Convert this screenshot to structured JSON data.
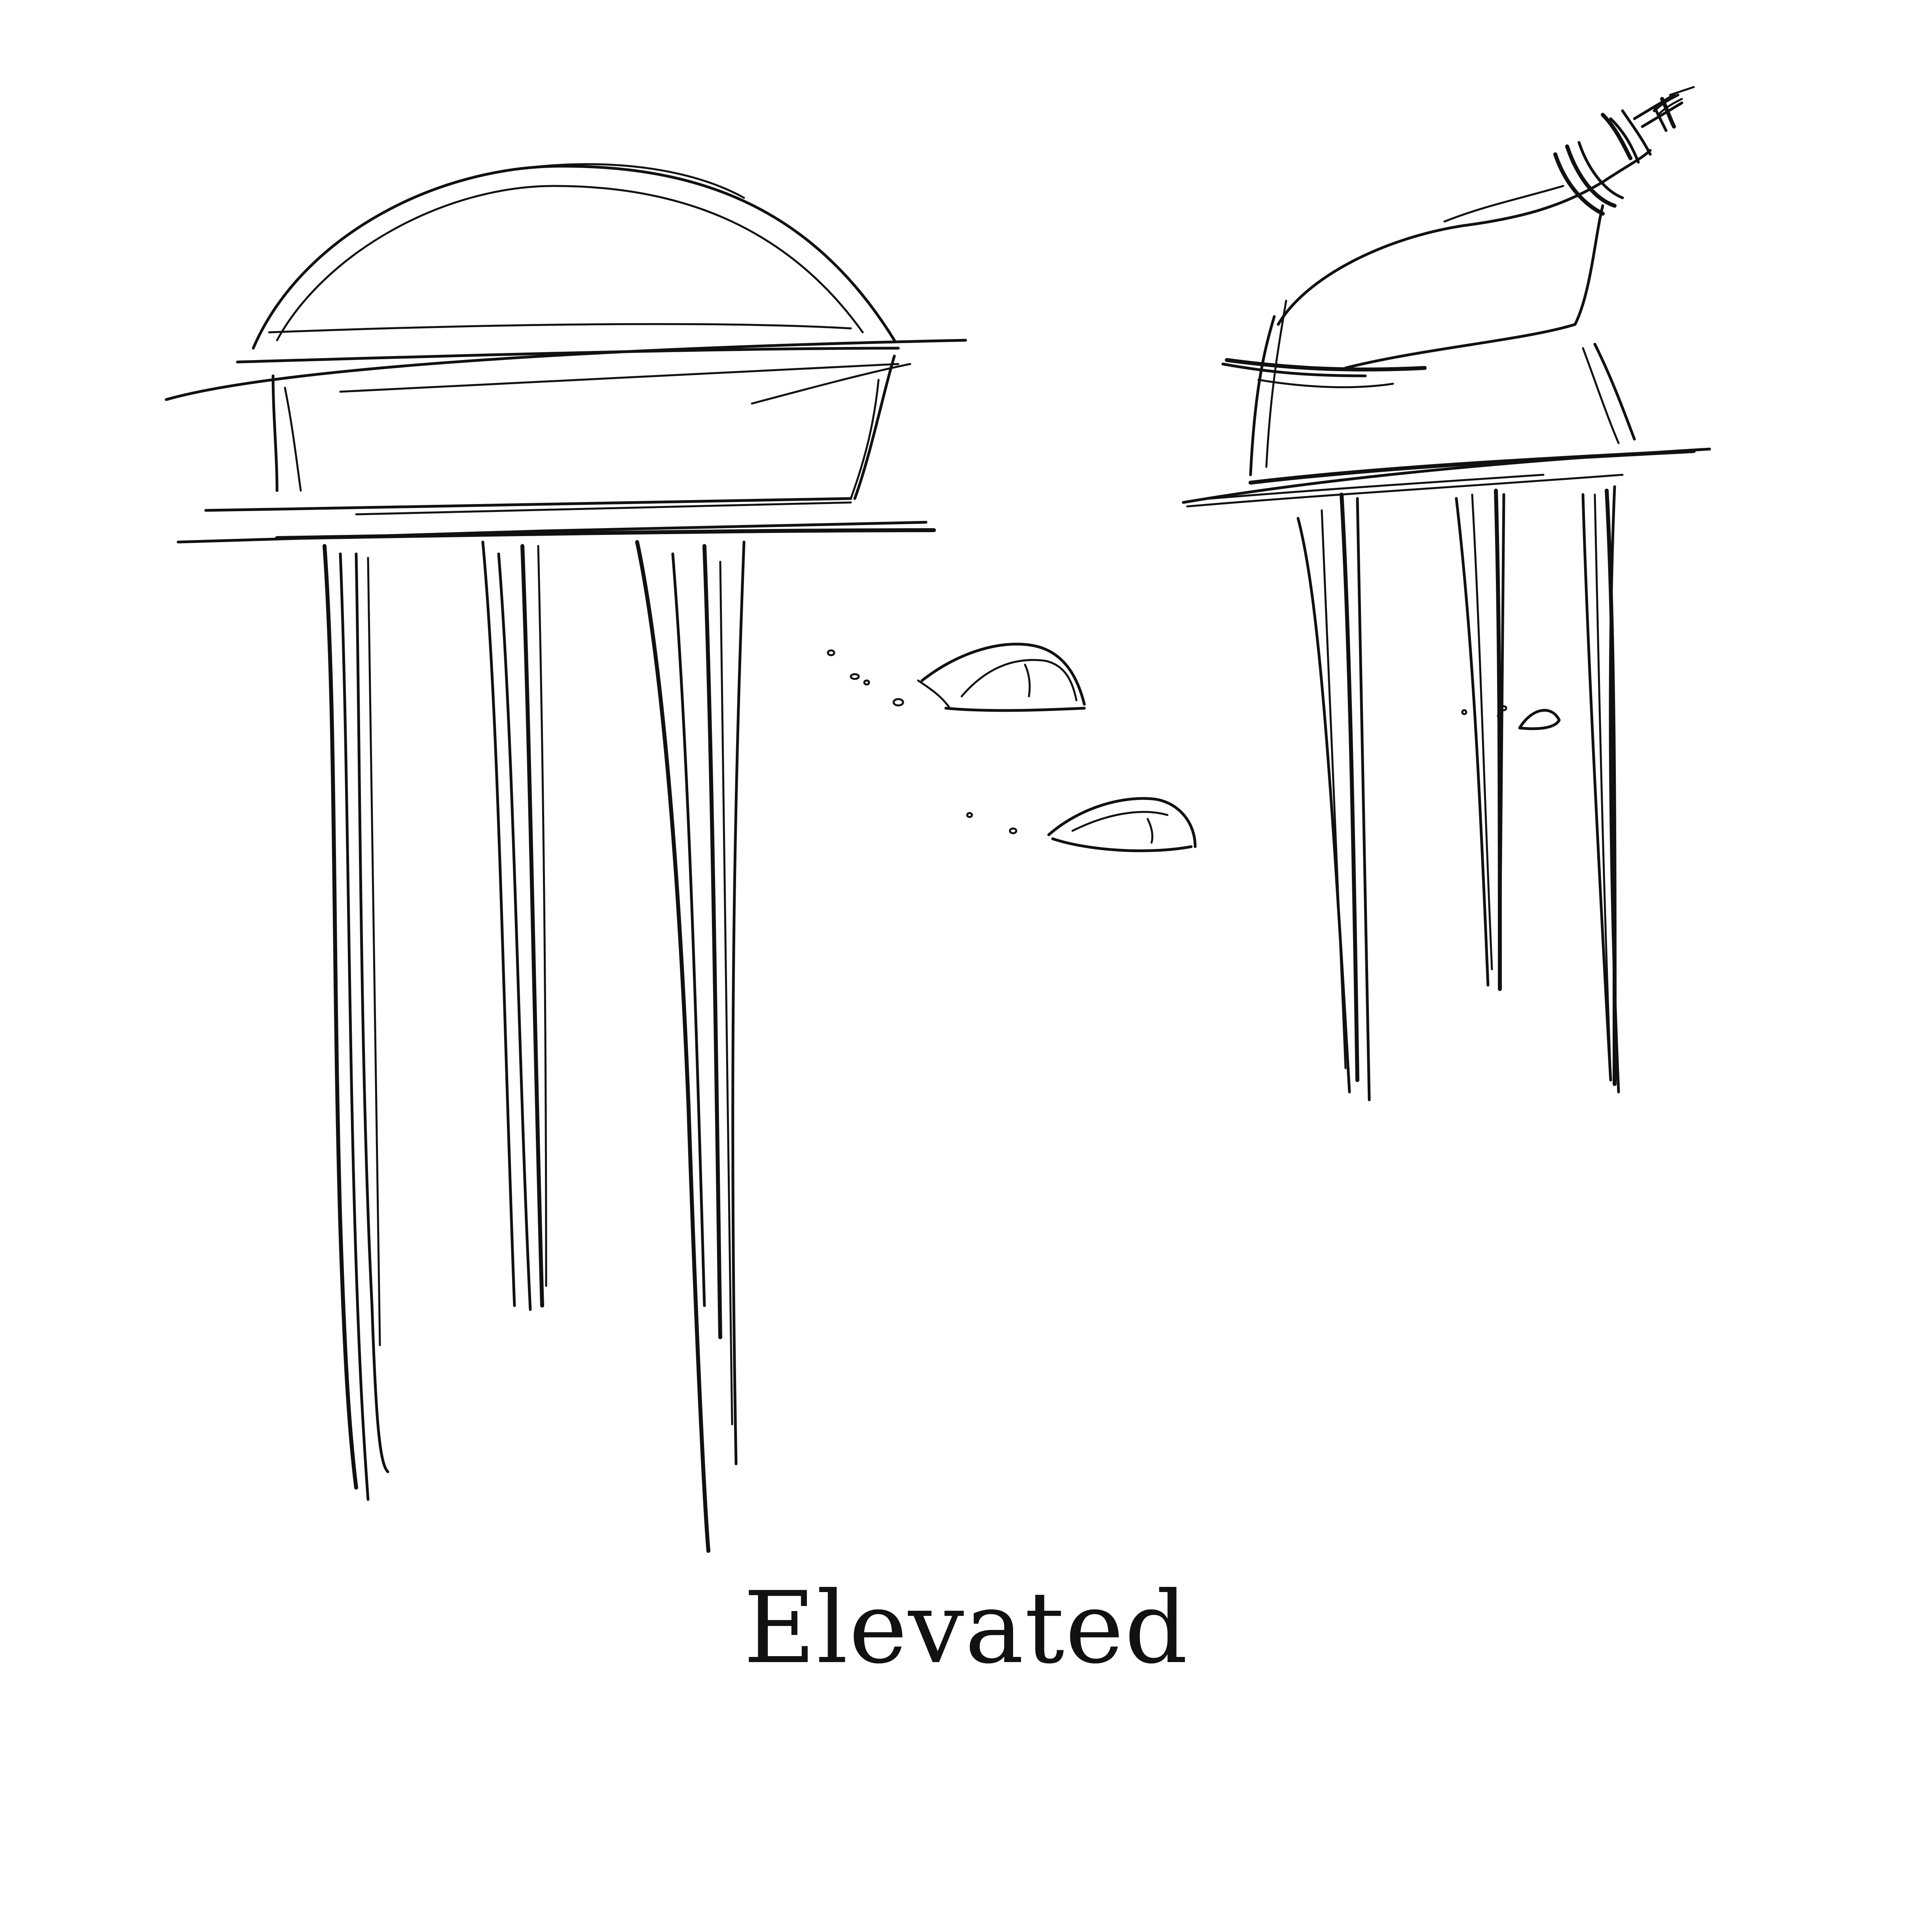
{
  "caption": {
    "text": "Elevated"
  },
  "colors": {
    "background": "#ffffff",
    "ink": "#111111"
  },
  "illustration": {
    "subjects": [
      "left-elevated-dome-structure",
      "right-elevated-tilted-structure",
      "floating-stones"
    ]
  }
}
